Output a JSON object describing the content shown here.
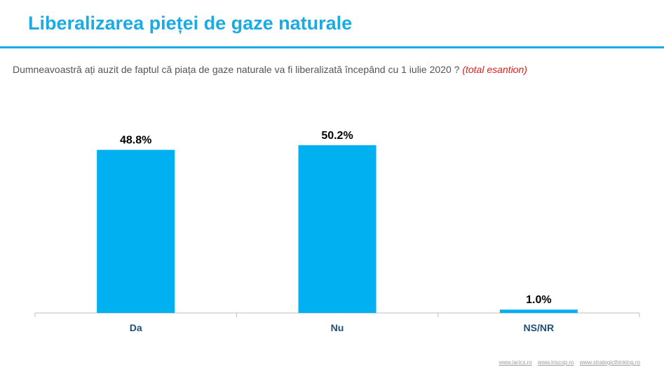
{
  "header": {
    "title": "Liberalizarea pieței de gaze naturale"
  },
  "question": {
    "text": "Dumneavoastră ați auzit de faptul că piața de gaze naturale va fi liberalizată începând cu 1 iulie 2020 ?",
    "note": "(total esantion)"
  },
  "chart_data": {
    "type": "bar",
    "categories": [
      "Da",
      "Nu",
      "NS/NR"
    ],
    "values": [
      48.8,
      50.2,
      1.0
    ],
    "value_labels": [
      "48.8%",
      "50.2%",
      "1.0%"
    ],
    "title": "",
    "xlabel": "",
    "ylabel": "",
    "ylim": [
      0,
      55
    ],
    "grid": false,
    "legend": "none"
  },
  "colors": {
    "accent": "#1aabe4",
    "bar": "#00b0f0",
    "category_label": "#1f4e79",
    "note": "#e11c1c"
  },
  "footer": {
    "links": [
      "www.iarics.ro",
      "www.inscop.ro",
      "www.strategicthinking.ro"
    ]
  }
}
